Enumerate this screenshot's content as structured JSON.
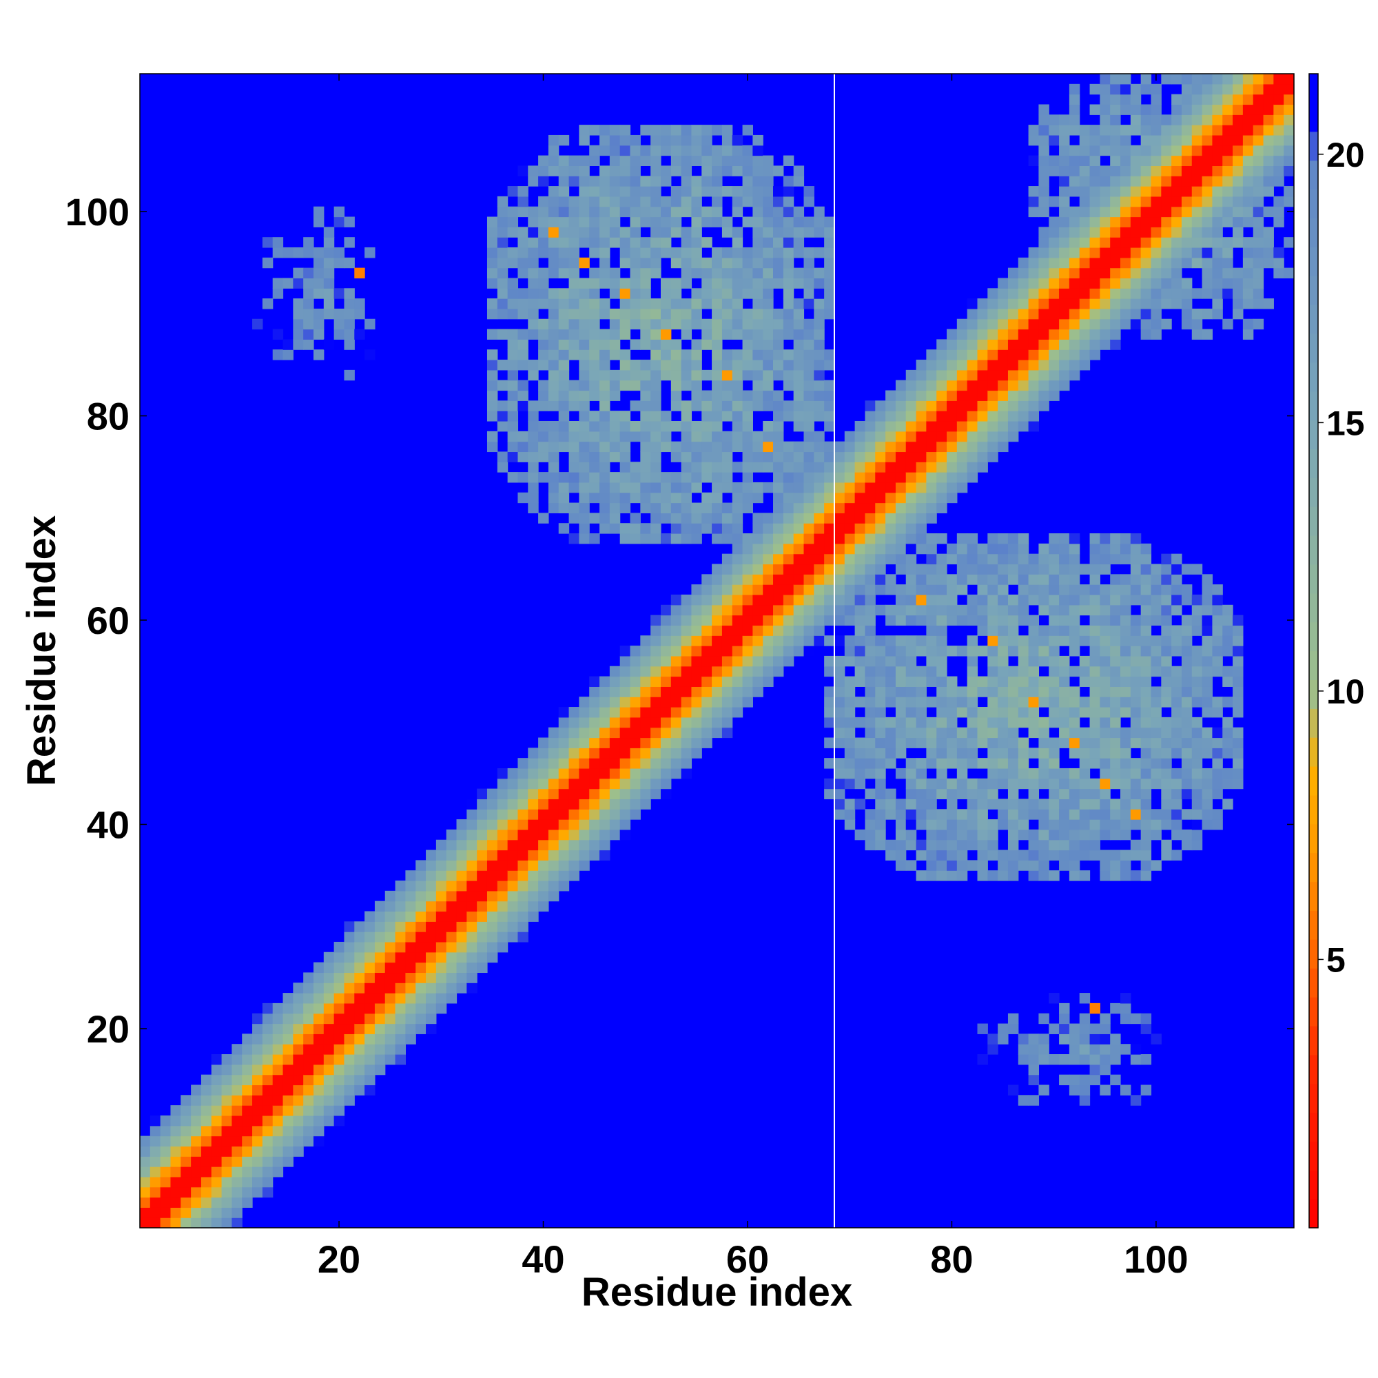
{
  "chart_data": {
    "type": "heatmap",
    "title": "",
    "xlabel": "Residue index",
    "ylabel": "Residue index",
    "n_residues": 113,
    "xlim": [
      0.5,
      113.5
    ],
    "ylim": [
      0.5,
      113.5
    ],
    "x_ticks": [
      20,
      40,
      60,
      80,
      100
    ],
    "y_ticks": [
      20,
      40,
      60,
      80,
      100
    ],
    "colorbar": {
      "ticks": [
        5,
        10,
        15,
        20
      ],
      "range": [
        0,
        21.5
      ],
      "stops": [
        {
          "value": 0,
          "color": "#ff0000"
        },
        {
          "value": 3,
          "color": "#ff2a00"
        },
        {
          "value": 5,
          "color": "#ff6400"
        },
        {
          "value": 7,
          "color": "#ff9a00"
        },
        {
          "value": 8.5,
          "color": "#ffb000"
        },
        {
          "value": 10,
          "color": "#9dbf8c"
        },
        {
          "value": 15,
          "color": "#7aa6b8"
        },
        {
          "value": 20,
          "color": "#5f86c8"
        },
        {
          "value": 20.5,
          "color": "#0000ff"
        },
        {
          "value": 21.5,
          "color": "#0000ff"
        }
      ]
    },
    "diagonal_band": {
      "center_value": 1,
      "halfwidth_residues": 9
    },
    "domain_boundary_residue": 68.5,
    "contact_regions": [
      {
        "x_range": [
          35,
          68
        ],
        "y_range": [
          68,
          108
        ],
        "value": 13
      },
      {
        "x_range": [
          68,
          108
        ],
        "y_range": [
          35,
          68
        ],
        "value": 13
      },
      {
        "x_range": [
          95,
          113
        ],
        "y_range": [
          88,
          113
        ],
        "value": 14
      },
      {
        "x_range": [
          88,
          113
        ],
        "y_range": [
          95,
          113
        ],
        "value": 14
      },
      {
        "x_range": [
          12,
          24
        ],
        "y_range": [
          83,
          101
        ],
        "value": 17
      },
      {
        "x_range": [
          83,
          101
        ],
        "y_range": [
          12,
          24
        ],
        "value": 17
      }
    ],
    "highlights": [
      {
        "x": 22,
        "y": 94,
        "value": 6
      },
      {
        "x": 94,
        "y": 22,
        "value": 6
      },
      {
        "x": 44,
        "y": 95,
        "value": 7
      },
      {
        "x": 48,
        "y": 92,
        "value": 7
      },
      {
        "x": 52,
        "y": 88,
        "value": 7
      },
      {
        "x": 58,
        "y": 84,
        "value": 7
      },
      {
        "x": 62,
        "y": 77,
        "value": 7
      },
      {
        "x": 77,
        "y": 62,
        "value": 7
      },
      {
        "x": 84,
        "y": 58,
        "value": 7
      },
      {
        "x": 88,
        "y": 52,
        "value": 7
      },
      {
        "x": 92,
        "y": 48,
        "value": 7
      },
      {
        "x": 95,
        "y": 44,
        "value": 7
      },
      {
        "x": 98,
        "y": 41,
        "value": 7
      },
      {
        "x": 41,
        "y": 98,
        "value": 7
      }
    ]
  }
}
